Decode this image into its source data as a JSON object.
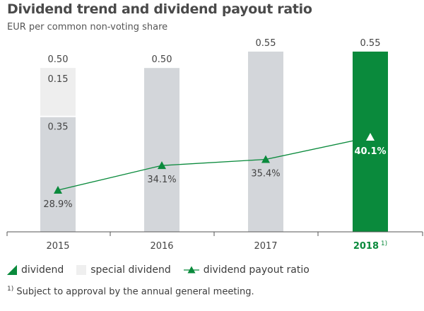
{
  "header": {
    "title": "Dividend trend and dividend payout ratio",
    "subtitle": "EUR per common non-voting share"
  },
  "legend": {
    "dividend": "dividend",
    "special_dividend": "special dividend",
    "payout_ratio": "dividend payout ratio"
  },
  "footnote": {
    "marker": "1)",
    "text": "Subject to approval by the annual general meeting."
  },
  "colors": {
    "dividend_bar": "#d3d6da",
    "special_bar": "#eeeeee",
    "highlight_bar": "#0a8a3c",
    "line": "#0a8a3c",
    "highlight_label": "#0a8a3c"
  },
  "chart_data": {
    "type": "bar",
    "categories": [
      "2015",
      "2016",
      "2017",
      "2018"
    ],
    "category_notes": [
      "",
      "",
      "",
      "1)"
    ],
    "highlight_category": "2018",
    "ylim": [
      0,
      0.6
    ],
    "series": [
      {
        "name": "dividend",
        "values": [
          0.35,
          0.5,
          0.55,
          0.55
        ]
      },
      {
        "name": "special dividend",
        "values": [
          0.15,
          0,
          0,
          0
        ]
      }
    ],
    "totals": [
      "0.50",
      "0.50",
      "0.55",
      "0.55"
    ],
    "segment_labels": [
      {
        "category": "2015",
        "series": "special dividend",
        "label": "0.15"
      },
      {
        "category": "2015",
        "series": "dividend",
        "label": "0.35"
      }
    ],
    "line_series": {
      "name": "dividend payout ratio",
      "values": [
        28.9,
        34.1,
        35.4,
        40.1
      ],
      "labels": [
        "28.9%",
        "34.1%",
        "35.4%",
        "40.1%"
      ],
      "ylim": [
        0,
        70
      ]
    },
    "xlabel": "",
    "ylabel": ""
  }
}
